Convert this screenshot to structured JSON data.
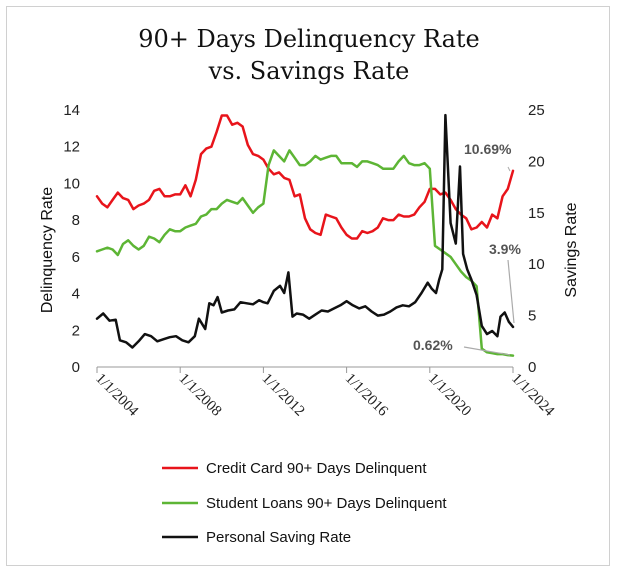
{
  "chart_data": {
    "type": "line",
    "title_line1": "90+ Days Delinquency Rate",
    "title_line2": "vs. Savings Rate",
    "ylabel_left": "Delinquency Rate",
    "ylabel_right": "Savings Rate",
    "ylim_left": [
      0,
      14
    ],
    "ylim_right": [
      0,
      25
    ],
    "yticks_left": [
      0,
      2,
      4,
      6,
      8,
      10,
      12,
      14
    ],
    "yticks_right": [
      0,
      5,
      10,
      15,
      20,
      25
    ],
    "x_ticks": [
      {
        "year": 2004.0,
        "label": "1/1/2004"
      },
      {
        "year": 2008.0,
        "label": "1/1/2008"
      },
      {
        "year": 2012.0,
        "label": "1/1/2012"
      },
      {
        "year": 2016.0,
        "label": "1/1/2016"
      },
      {
        "year": 2020.0,
        "label": "1/1/2020"
      },
      {
        "year": 2024.0,
        "label": "1/1/2024"
      }
    ],
    "xlim": [
      2004.0,
      2024.0
    ],
    "grid": false,
    "legend_position": "bottom",
    "annotations": [
      {
        "label": "10.69%",
        "series": "Credit Card 90+ Days Delinquent"
      },
      {
        "label": "3.9%",
        "series": "Personal Saving Rate"
      },
      {
        "label": "0.62%",
        "series": "Student Loans 90+ Days Delinquent"
      }
    ],
    "series": [
      {
        "name": "Credit Card 90+ Days Delinquent",
        "color": "#e8141b",
        "axis": "left",
        "points": [
          [
            2004.0,
            9.3
          ],
          [
            2004.25,
            8.9
          ],
          [
            2004.5,
            8.7
          ],
          [
            2004.75,
            9.1
          ],
          [
            2005.0,
            9.5
          ],
          [
            2005.25,
            9.2
          ],
          [
            2005.5,
            9.1
          ],
          [
            2005.75,
            8.6
          ],
          [
            2006.0,
            8.8
          ],
          [
            2006.25,
            8.9
          ],
          [
            2006.5,
            9.1
          ],
          [
            2006.75,
            9.6
          ],
          [
            2007.0,
            9.7
          ],
          [
            2007.25,
            9.3
          ],
          [
            2007.5,
            9.3
          ],
          [
            2007.75,
            9.4
          ],
          [
            2008.0,
            9.4
          ],
          [
            2008.25,
            9.9
          ],
          [
            2008.5,
            9.3
          ],
          [
            2008.75,
            10.2
          ],
          [
            2009.0,
            11.6
          ],
          [
            2009.25,
            11.9
          ],
          [
            2009.5,
            12.0
          ],
          [
            2009.75,
            12.8
          ],
          [
            2010.0,
            13.7
          ],
          [
            2010.25,
            13.7
          ],
          [
            2010.5,
            13.2
          ],
          [
            2010.75,
            13.3
          ],
          [
            2011.0,
            13.1
          ],
          [
            2011.25,
            12.1
          ],
          [
            2011.5,
            11.6
          ],
          [
            2011.75,
            11.5
          ],
          [
            2012.0,
            11.3
          ],
          [
            2012.25,
            10.8
          ],
          [
            2012.5,
            10.5
          ],
          [
            2012.75,
            10.6
          ],
          [
            2013.0,
            10.3
          ],
          [
            2013.25,
            10.2
          ],
          [
            2013.5,
            9.3
          ],
          [
            2013.75,
            9.4
          ],
          [
            2014.0,
            8.1
          ],
          [
            2014.25,
            7.5
          ],
          [
            2014.5,
            7.3
          ],
          [
            2014.75,
            7.2
          ],
          [
            2015.0,
            8.3
          ],
          [
            2015.25,
            8.2
          ],
          [
            2015.5,
            8.1
          ],
          [
            2015.75,
            7.6
          ],
          [
            2016.0,
            7.2
          ],
          [
            2016.25,
            7.0
          ],
          [
            2016.5,
            7.0
          ],
          [
            2016.75,
            7.4
          ],
          [
            2017.0,
            7.3
          ],
          [
            2017.25,
            7.4
          ],
          [
            2017.5,
            7.6
          ],
          [
            2017.75,
            8.1
          ],
          [
            2018.0,
            8.0
          ],
          [
            2018.25,
            8.0
          ],
          [
            2018.5,
            8.3
          ],
          [
            2018.75,
            8.2
          ],
          [
            2019.0,
            8.2
          ],
          [
            2019.25,
            8.3
          ],
          [
            2019.5,
            8.7
          ],
          [
            2019.75,
            9.0
          ],
          [
            2020.0,
            9.7
          ],
          [
            2020.25,
            9.7
          ],
          [
            2020.5,
            9.4
          ],
          [
            2020.75,
            9.5
          ],
          [
            2021.0,
            9.1
          ],
          [
            2021.25,
            8.6
          ],
          [
            2021.5,
            8.3
          ],
          [
            2021.75,
            8.1
          ],
          [
            2022.0,
            7.5
          ],
          [
            2022.25,
            7.6
          ],
          [
            2022.5,
            7.9
          ],
          [
            2022.75,
            7.6
          ],
          [
            2023.0,
            8.3
          ],
          [
            2023.25,
            8.1
          ],
          [
            2023.5,
            9.3
          ],
          [
            2023.75,
            9.7
          ],
          [
            2024.0,
            10.69
          ]
        ]
      },
      {
        "name": "Student Loans 90+ Days Delinquent",
        "color": "#5db535",
        "axis": "left",
        "points": [
          [
            2004.0,
            6.3
          ],
          [
            2004.25,
            6.4
          ],
          [
            2004.5,
            6.5
          ],
          [
            2004.75,
            6.4
          ],
          [
            2005.0,
            6.1
          ],
          [
            2005.25,
            6.7
          ],
          [
            2005.5,
            6.9
          ],
          [
            2005.75,
            6.6
          ],
          [
            2006.0,
            6.4
          ],
          [
            2006.25,
            6.6
          ],
          [
            2006.5,
            7.1
          ],
          [
            2006.75,
            7.0
          ],
          [
            2007.0,
            6.8
          ],
          [
            2007.25,
            7.2
          ],
          [
            2007.5,
            7.5
          ],
          [
            2007.75,
            7.4
          ],
          [
            2008.0,
            7.4
          ],
          [
            2008.25,
            7.6
          ],
          [
            2008.5,
            7.7
          ],
          [
            2008.75,
            7.8
          ],
          [
            2009.0,
            8.2
          ],
          [
            2009.25,
            8.3
          ],
          [
            2009.5,
            8.6
          ],
          [
            2009.75,
            8.6
          ],
          [
            2010.0,
            8.9
          ],
          [
            2010.25,
            9.1
          ],
          [
            2010.5,
            9.0
          ],
          [
            2010.75,
            8.9
          ],
          [
            2011.0,
            9.2
          ],
          [
            2011.25,
            8.8
          ],
          [
            2011.5,
            8.4
          ],
          [
            2011.75,
            8.7
          ],
          [
            2012.0,
            8.9
          ],
          [
            2012.25,
            11.0
          ],
          [
            2012.5,
            11.8
          ],
          [
            2012.75,
            11.5
          ],
          [
            2013.0,
            11.2
          ],
          [
            2013.25,
            11.8
          ],
          [
            2013.5,
            11.4
          ],
          [
            2013.75,
            11.0
          ],
          [
            2014.0,
            11.0
          ],
          [
            2014.25,
            11.2
          ],
          [
            2014.5,
            11.5
          ],
          [
            2014.75,
            11.3
          ],
          [
            2015.0,
            11.4
          ],
          [
            2015.25,
            11.5
          ],
          [
            2015.5,
            11.5
          ],
          [
            2015.75,
            11.1
          ],
          [
            2016.0,
            11.1
          ],
          [
            2016.25,
            11.1
          ],
          [
            2016.5,
            10.9
          ],
          [
            2016.75,
            11.2
          ],
          [
            2017.0,
            11.2
          ],
          [
            2017.25,
            11.1
          ],
          [
            2017.5,
            11.0
          ],
          [
            2017.75,
            10.8
          ],
          [
            2018.0,
            10.8
          ],
          [
            2018.25,
            10.8
          ],
          [
            2018.5,
            11.2
          ],
          [
            2018.75,
            11.5
          ],
          [
            2019.0,
            11.1
          ],
          [
            2019.25,
            11.0
          ],
          [
            2019.5,
            11.0
          ],
          [
            2019.75,
            11.1
          ],
          [
            2020.0,
            10.8
          ],
          [
            2020.25,
            6.6
          ],
          [
            2020.5,
            6.4
          ],
          [
            2020.75,
            6.2
          ],
          [
            2021.0,
            6.0
          ],
          [
            2021.25,
            5.6
          ],
          [
            2021.5,
            5.2
          ],
          [
            2021.75,
            4.9
          ],
          [
            2022.0,
            4.7
          ],
          [
            2022.25,
            4.4
          ],
          [
            2022.5,
            1.0
          ],
          [
            2022.75,
            0.8
          ],
          [
            2023.0,
            0.75
          ],
          [
            2023.25,
            0.7
          ],
          [
            2023.5,
            0.7
          ],
          [
            2023.75,
            0.65
          ],
          [
            2024.0,
            0.62
          ]
        ]
      },
      {
        "name": "Personal Saving Rate",
        "color": "#111111",
        "axis": "right",
        "points": [
          [
            2004.0,
            4.7
          ],
          [
            2004.3,
            5.2
          ],
          [
            2004.6,
            4.5
          ],
          [
            2004.9,
            4.6
          ],
          [
            2005.1,
            2.6
          ],
          [
            2005.4,
            2.4
          ],
          [
            2005.7,
            1.9
          ],
          [
            2006.0,
            2.5
          ],
          [
            2006.3,
            3.2
          ],
          [
            2006.6,
            3.0
          ],
          [
            2006.9,
            2.5
          ],
          [
            2007.2,
            2.7
          ],
          [
            2007.5,
            2.9
          ],
          [
            2007.8,
            3.0
          ],
          [
            2008.1,
            2.6
          ],
          [
            2008.4,
            2.4
          ],
          [
            2008.7,
            3.0
          ],
          [
            2008.9,
            4.7
          ],
          [
            2009.2,
            3.7
          ],
          [
            2009.4,
            6.2
          ],
          [
            2009.6,
            6.0
          ],
          [
            2009.8,
            6.8
          ],
          [
            2010.0,
            5.3
          ],
          [
            2010.3,
            5.5
          ],
          [
            2010.6,
            5.6
          ],
          [
            2010.9,
            6.3
          ],
          [
            2011.2,
            6.2
          ],
          [
            2011.5,
            6.1
          ],
          [
            2011.8,
            6.5
          ],
          [
            2012.0,
            6.3
          ],
          [
            2012.2,
            6.2
          ],
          [
            2012.5,
            7.4
          ],
          [
            2012.8,
            7.9
          ],
          [
            2013.0,
            7.2
          ],
          [
            2013.2,
            9.2
          ],
          [
            2013.4,
            4.9
          ],
          [
            2013.6,
            5.2
          ],
          [
            2013.9,
            5.1
          ],
          [
            2014.2,
            4.7
          ],
          [
            2014.5,
            5.1
          ],
          [
            2014.8,
            5.5
          ],
          [
            2015.1,
            5.4
          ],
          [
            2015.4,
            5.7
          ],
          [
            2015.7,
            6.0
          ],
          [
            2016.0,
            6.4
          ],
          [
            2016.3,
            6.0
          ],
          [
            2016.6,
            5.7
          ],
          [
            2016.9,
            5.9
          ],
          [
            2017.2,
            5.4
          ],
          [
            2017.5,
            5.0
          ],
          [
            2017.8,
            5.1
          ],
          [
            2018.1,
            5.4
          ],
          [
            2018.4,
            5.8
          ],
          [
            2018.7,
            6.0
          ],
          [
            2019.0,
            5.9
          ],
          [
            2019.3,
            6.3
          ],
          [
            2019.6,
            7.2
          ],
          [
            2019.9,
            8.2
          ],
          [
            2020.1,
            7.6
          ],
          [
            2020.3,
            7.2
          ],
          [
            2020.45,
            8.5
          ],
          [
            2020.6,
            9.5
          ],
          [
            2020.75,
            24.5
          ],
          [
            2021.0,
            14.0
          ],
          [
            2021.25,
            12.0
          ],
          [
            2021.45,
            19.5
          ],
          [
            2021.6,
            11.0
          ],
          [
            2021.8,
            9.5
          ],
          [
            2022.0,
            8.5
          ],
          [
            2022.25,
            7.0
          ],
          [
            2022.5,
            4.0
          ],
          [
            2022.75,
            3.2
          ],
          [
            2023.0,
            3.5
          ],
          [
            2023.25,
            3.0
          ],
          [
            2023.4,
            4.9
          ],
          [
            2023.6,
            5.3
          ],
          [
            2023.8,
            4.4
          ],
          [
            2024.0,
            3.9
          ]
        ]
      }
    ]
  }
}
